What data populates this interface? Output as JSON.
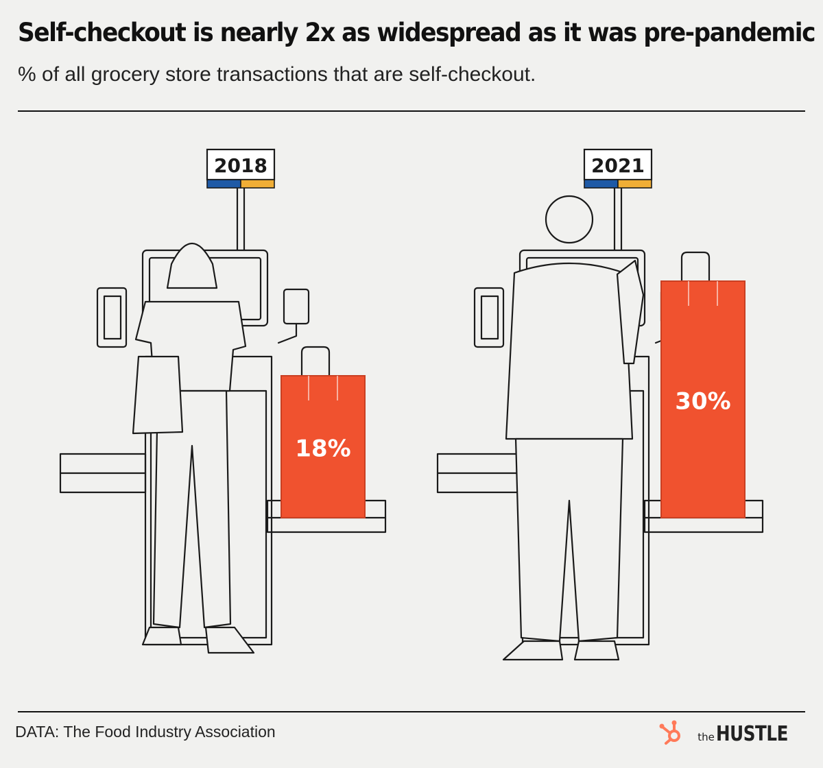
{
  "header": {
    "title": "Self-checkout is nearly 2x as widespread as it was pre-pandemic",
    "subtitle": "% of all grocery store transactions that are self-checkout."
  },
  "footer": {
    "source": "DATA: The Food Industry Association",
    "logo_small": "the",
    "logo_large": "HUSTLE"
  },
  "colors": {
    "bag": "#f0522f",
    "bag_dark": "#c93f22",
    "sign_blue": "#1f5aa6",
    "sign_yellow": "#f0ae36",
    "ink": "#1a1a1a",
    "logo_accent": "#ff7a59"
  },
  "chart_data": {
    "type": "bar",
    "categories": [
      "2018",
      "2021"
    ],
    "values": [
      18,
      30
    ],
    "labels": [
      "18%",
      "30%"
    ],
    "unit": "%"
  }
}
